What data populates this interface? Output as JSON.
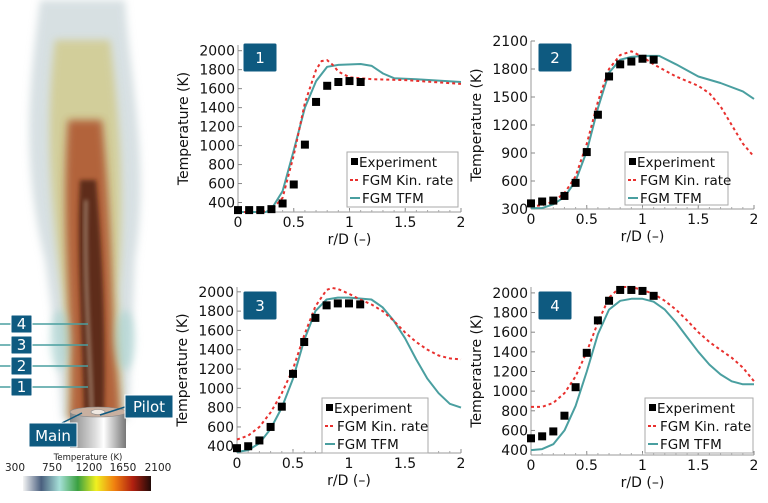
{
  "figure": {
    "station_labels": [
      "4",
      "3",
      "2",
      "1"
    ],
    "pilot_label": "Pilot",
    "main_label": "Main",
    "colorbar": {
      "title": "Temperature (K)",
      "ticks": [
        "300",
        "750",
        "1200",
        "1650",
        "2100"
      ],
      "colors": [
        "#f4f4f4",
        "#4a5f7e",
        "#a6e0d8",
        "#3aa040",
        "#f0f020",
        "#f08010",
        "#b02010",
        "#200a08"
      ]
    },
    "badge_color": "#0e5a80"
  },
  "legend": {
    "experiment": "Experiment",
    "kin_rate": "FGM Kin. rate",
    "tfm": "FGM TFM"
  },
  "colors": {
    "experiment": "#000000",
    "kin_rate": "#e8302e",
    "tfm": "#4a9fa0"
  },
  "chart_data": [
    {
      "type": "line",
      "panel": "1",
      "xlabel": "r/D (–)",
      "ylabel": "Temperature (K)",
      "xlim": [
        0,
        2
      ],
      "ylim": [
        300,
        2060
      ],
      "xticks": [
        "0",
        "0.5",
        "1",
        "1.5",
        "2"
      ],
      "yticks": [
        400,
        600,
        800,
        1000,
        1200,
        1400,
        1600,
        1800,
        2000
      ],
      "legend": "bottom-right",
      "experiment": {
        "x": [
          0,
          0.1,
          0.2,
          0.3,
          0.4,
          0.5,
          0.6,
          0.7,
          0.8,
          0.9,
          1.0,
          1.1
        ],
        "y": [
          320,
          320,
          320,
          330,
          390,
          590,
          1010,
          1460,
          1630,
          1670,
          1680,
          1670
        ]
      },
      "kin_rate": {
        "x": [
          0,
          0.2,
          0.3,
          0.4,
          0.5,
          0.6,
          0.7,
          0.75,
          0.8,
          0.85,
          0.9,
          1.0,
          1.2,
          1.5,
          2
        ],
        "y": [
          300,
          300,
          320,
          450,
          900,
          1450,
          1800,
          1890,
          1900,
          1850,
          1780,
          1720,
          1700,
          1690,
          1650
        ]
      },
      "tfm": {
        "x": [
          0,
          0.25,
          0.3,
          0.4,
          0.5,
          0.6,
          0.7,
          0.8,
          0.9,
          1.1,
          1.2,
          1.3,
          1.4,
          1.6,
          2
        ],
        "y": [
          300,
          300,
          330,
          520,
          950,
          1400,
          1680,
          1830,
          1850,
          1860,
          1840,
          1760,
          1710,
          1700,
          1670
        ]
      }
    },
    {
      "type": "line",
      "panel": "2",
      "xlabel": "r/D (–)",
      "ylabel": "Temperature (K)",
      "xlim": [
        0,
        2
      ],
      "ylim": [
        300,
        2100
      ],
      "xticks": [
        "0",
        "0.5",
        "1",
        "1.5",
        "2"
      ],
      "yticks": [
        300,
        600,
        900,
        1200,
        1500,
        1800,
        2100
      ],
      "legend": "bottom-right",
      "experiment": {
        "x": [
          0,
          0.1,
          0.2,
          0.3,
          0.4,
          0.5,
          0.6,
          0.7,
          0.8,
          0.9,
          1.0,
          1.1
        ],
        "y": [
          360,
          380,
          390,
          440,
          580,
          910,
          1310,
          1720,
          1850,
          1880,
          1910,
          1900
        ]
      },
      "kin_rate": {
        "x": [
          0,
          0.1,
          0.2,
          0.3,
          0.4,
          0.5,
          0.6,
          0.7,
          0.8,
          0.9,
          1.0,
          1.1,
          1.3,
          1.5,
          1.6,
          1.7,
          1.8,
          1.9,
          2
        ],
        "y": [
          330,
          340,
          380,
          470,
          650,
          1000,
          1450,
          1800,
          1950,
          1990,
          1930,
          1850,
          1720,
          1620,
          1540,
          1400,
          1200,
          1000,
          860
        ]
      },
      "tfm": {
        "x": [
          0,
          0.1,
          0.2,
          0.3,
          0.4,
          0.5,
          0.6,
          0.7,
          0.8,
          0.9,
          1.0,
          1.15,
          1.3,
          1.5,
          1.7,
          1.9,
          2
        ],
        "y": [
          310,
          310,
          350,
          430,
          600,
          920,
          1380,
          1760,
          1900,
          1930,
          1940,
          1940,
          1850,
          1720,
          1650,
          1560,
          1480
        ]
      }
    },
    {
      "type": "line",
      "panel": "3",
      "xlabel": "r/D (–)",
      "ylabel": "Temperature (K)",
      "xlim": [
        0,
        2
      ],
      "ylim": [
        330,
        2050
      ],
      "xticks": [
        "0",
        "0.5",
        "1",
        "1.5",
        "2"
      ],
      "yticks": [
        400,
        600,
        800,
        1000,
        1200,
        1400,
        1600,
        1800,
        2000
      ],
      "legend": "bottom-right",
      "experiment": {
        "x": [
          0,
          0.1,
          0.2,
          0.3,
          0.4,
          0.5,
          0.6,
          0.7,
          0.8,
          0.9,
          1.0,
          1.1
        ],
        "y": [
          380,
          400,
          460,
          600,
          810,
          1150,
          1480,
          1730,
          1860,
          1880,
          1880,
          1870
        ]
      },
      "kin_rate": {
        "x": [
          0,
          0.1,
          0.2,
          0.3,
          0.4,
          0.5,
          0.6,
          0.7,
          0.8,
          0.85,
          0.9,
          1.0,
          1.1,
          1.2,
          1.3,
          1.4,
          1.5,
          1.6,
          1.7,
          1.8,
          1.9,
          2
        ],
        "y": [
          470,
          510,
          600,
          750,
          950,
          1200,
          1550,
          1850,
          2020,
          2040,
          2030,
          1980,
          1920,
          1870,
          1800,
          1700,
          1580,
          1480,
          1400,
          1340,
          1310,
          1300
        ]
      },
      "tfm": {
        "x": [
          0,
          0.1,
          0.2,
          0.3,
          0.4,
          0.5,
          0.6,
          0.7,
          0.8,
          0.9,
          1.0,
          1.2,
          1.3,
          1.4,
          1.5,
          1.6,
          1.7,
          1.8,
          1.9,
          2
        ],
        "y": [
          340,
          360,
          430,
          580,
          800,
          1100,
          1500,
          1800,
          1920,
          1940,
          1940,
          1920,
          1840,
          1700,
          1520,
          1300,
          1100,
          950,
          840,
          800
        ]
      }
    },
    {
      "type": "line",
      "panel": "4",
      "xlabel": "r/D (–)",
      "ylabel": "Temperature (K)",
      "xlim": [
        0,
        2
      ],
      "ylim": [
        350,
        2060
      ],
      "xticks": [
        "0",
        "0.5",
        "1",
        "1.5",
        "2"
      ],
      "yticks": [
        400,
        600,
        800,
        1000,
        1200,
        1400,
        1600,
        1800,
        2000
      ],
      "legend": "bottom-right",
      "experiment": {
        "x": [
          0,
          0.1,
          0.2,
          0.3,
          0.4,
          0.5,
          0.6,
          0.7,
          0.8,
          0.9,
          1.0,
          1.1
        ],
        "y": [
          520,
          540,
          590,
          750,
          1040,
          1390,
          1720,
          1920,
          2030,
          2030,
          2020,
          1970
        ]
      },
      "kin_rate": {
        "x": [
          0,
          0.1,
          0.2,
          0.3,
          0.4,
          0.5,
          0.6,
          0.7,
          0.8,
          0.9,
          1.0,
          1.1,
          1.2,
          1.3,
          1.4,
          1.5,
          1.6,
          1.7,
          1.8,
          1.9,
          2
        ],
        "y": [
          840,
          840,
          880,
          980,
          1150,
          1400,
          1700,
          1950,
          2060,
          2060,
          2030,
          1990,
          1920,
          1830,
          1720,
          1600,
          1500,
          1420,
          1340,
          1240,
          1100
        ]
      },
      "tfm": {
        "x": [
          0,
          0.1,
          0.2,
          0.3,
          0.4,
          0.5,
          0.6,
          0.7,
          0.8,
          0.9,
          1.0,
          1.1,
          1.2,
          1.3,
          1.4,
          1.5,
          1.6,
          1.7,
          1.8,
          1.9,
          2
        ],
        "y": [
          400,
          410,
          460,
          600,
          850,
          1200,
          1580,
          1830,
          1920,
          1940,
          1940,
          1910,
          1830,
          1700,
          1550,
          1400,
          1270,
          1170,
          1100,
          1070,
          1070
        ]
      }
    }
  ]
}
